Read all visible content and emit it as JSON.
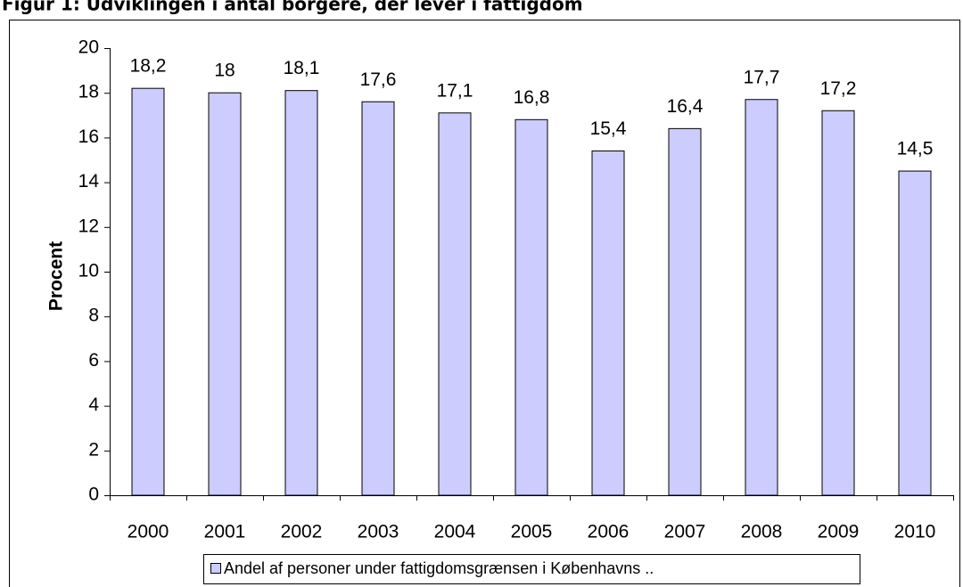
{
  "chart_data": {
    "type": "bar",
    "title": "Figur 1: Udviklingen i antal borgere, der lever i fattigdom",
    "y_label": "Procent",
    "categories": [
      "2000",
      "2001",
      "2002",
      "2003",
      "2004",
      "2005",
      "2006",
      "2007",
      "2008",
      "2009",
      "2010"
    ],
    "series": [
      {
        "name": "Andel af personer under fattigdomsgrænsen i Københavns ..",
        "color": "#ccccff",
        "values": [
          18.2,
          18,
          18.1,
          17.6,
          17.1,
          16.8,
          15.4,
          16.4,
          17.7,
          17.2,
          14.5
        ],
        "value_labels": [
          "18,2",
          "18",
          "18,1",
          "17,6",
          "17,1",
          "16,8",
          "15,4",
          "16,4",
          "17,7",
          "17,2",
          "14,5"
        ]
      }
    ],
    "ylim": [
      0,
      20
    ],
    "yticks": [
      0,
      2,
      4,
      6,
      8,
      10,
      12,
      14,
      16,
      18,
      20
    ],
    "grid": false,
    "legend": "bottom"
  }
}
